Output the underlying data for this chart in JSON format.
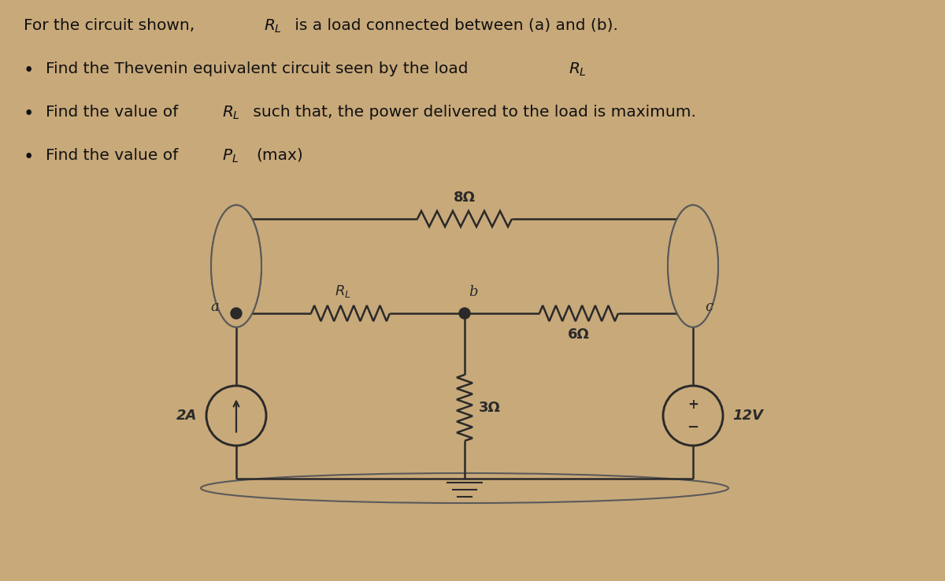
{
  "bg_color": "#c8a97a",
  "text_color": "#111111",
  "title_line1": "For the circuit shown, ",
  "title_RL": "R",
  "title_line2": " is a load connected between (a) and (b).",
  "bullet1": "Find the Thevenin equivalent circuit seen by the load ",
  "bullet2_pre": "Find the value of ",
  "bullet2_mid": " such that, the power delivered to the load is maximum.",
  "bullet3_pre": "Find the value of ",
  "bullet3_post": "(max)",
  "resistor_8": "8Ω",
  "resistor_6": "6Ω",
  "resistor_3": "3Ω",
  "label_RL": "R",
  "label_a": "a",
  "label_b": "b",
  "label_c": "c",
  "label_2A": "2A",
  "label_12V": "12V",
  "label_plus": "+",
  "label_minus": "−",
  "wire_color": "#2a2a2a",
  "circle_color": "#2a2a2a",
  "lw": 1.8
}
